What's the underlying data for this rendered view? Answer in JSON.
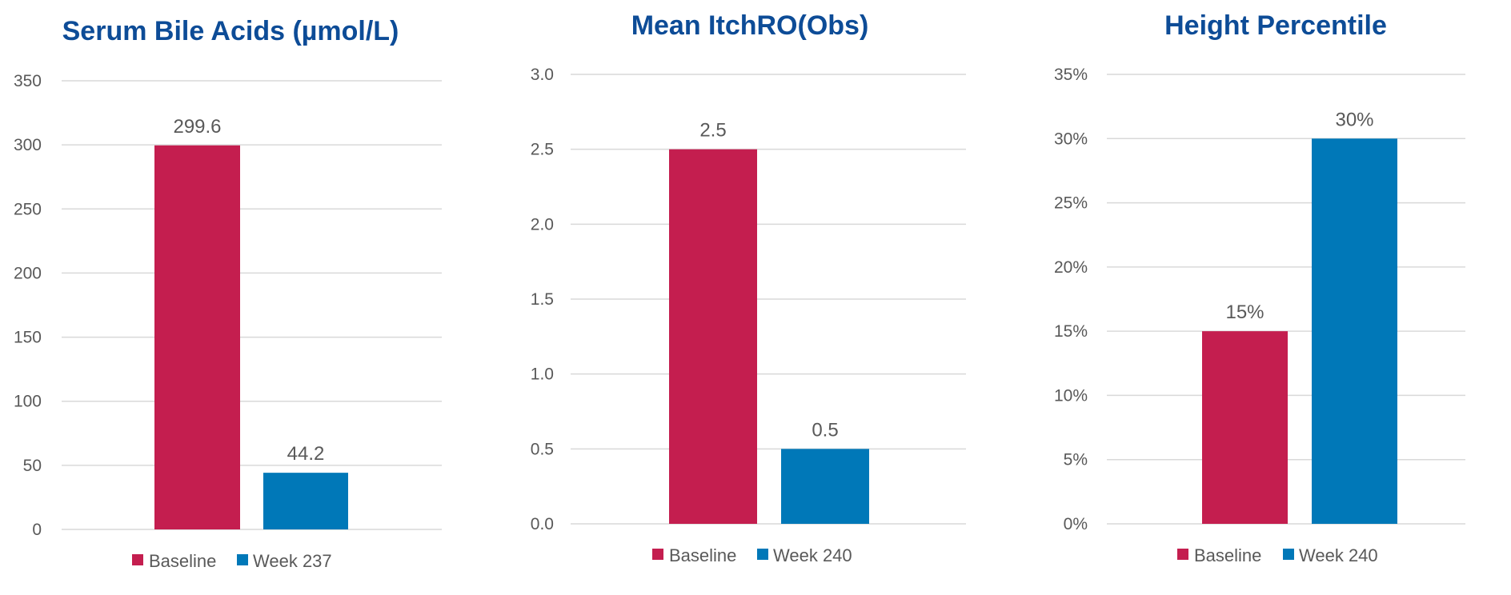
{
  "chart_data": [
    {
      "type": "bar",
      "title": "Serum Bile Acids (µmol/L)",
      "series": [
        {
          "name": "Baseline",
          "values": [
            299.6
          ]
        },
        {
          "name": "Week 237",
          "values": [
            44.2
          ]
        }
      ],
      "data_labels": [
        "299.6",
        "44.2"
      ],
      "ylim": [
        0,
        350
      ],
      "yticks": [
        0,
        50,
        100,
        150,
        200,
        250,
        300,
        350
      ],
      "ytick_labels": [
        "0",
        "50",
        "100",
        "150",
        "200",
        "250",
        "300",
        "350"
      ],
      "grid": true,
      "legend": "bottom"
    },
    {
      "type": "bar",
      "title": "Mean ItchRO(Obs)",
      "series": [
        {
          "name": "Baseline",
          "values": [
            2.5
          ]
        },
        {
          "name": "Week 240",
          "values": [
            0.5
          ]
        }
      ],
      "data_labels": [
        "2.5",
        "0.5"
      ],
      "ylim": [
        0,
        3.0
      ],
      "yticks": [
        0,
        0.5,
        1.0,
        1.5,
        2.0,
        2.5,
        3.0
      ],
      "ytick_labels": [
        "0.0",
        "0.5",
        "1.0",
        "1.5",
        "2.0",
        "2.5",
        "3.0"
      ],
      "grid": true,
      "legend": "bottom"
    },
    {
      "type": "bar",
      "title": "Height Percentile",
      "series": [
        {
          "name": "Baseline",
          "values": [
            15
          ]
        },
        {
          "name": "Week 240",
          "values": [
            30
          ]
        }
      ],
      "data_labels": [
        "15%",
        "30%"
      ],
      "ylim": [
        0,
        35
      ],
      "yticks": [
        0,
        5,
        10,
        15,
        20,
        25,
        30,
        35
      ],
      "ytick_labels": [
        "0%",
        "5%",
        "10%",
        "15%",
        "20%",
        "25%",
        "30%",
        "35%"
      ],
      "grid": true,
      "legend": "bottom"
    }
  ],
  "colors": {
    "baseline": "#c41e4f",
    "week": "#0078b8",
    "title": "#0d4c97"
  }
}
